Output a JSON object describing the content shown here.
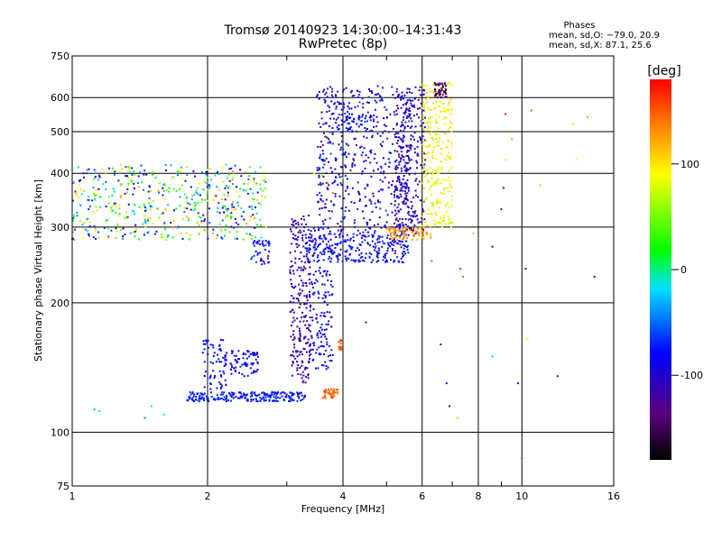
{
  "chart_data": {
    "type": "scatter",
    "title": "Tromsø 20140923 14:30:00–14:31:43",
    "subtitle": "RwPretec (8p)",
    "xlabel": "Frequency [MHz]",
    "ylabel": "Stationary phase Virtual Height [km]",
    "x_scale": "log",
    "y_scale": "log",
    "xlim": [
      1,
      16
    ],
    "ylim": [
      75,
      750
    ],
    "x_ticks": [
      1,
      2,
      4,
      6,
      8,
      10,
      16
    ],
    "x_minor_ticks": [
      3,
      5,
      7,
      9
    ],
    "y_ticks": [
      75,
      100,
      200,
      300,
      400,
      500,
      600,
      750
    ],
    "grid": true,
    "legend": {
      "title": "Phases",
      "lines": [
        "mean, sd,O: −79.0, 20.9",
        "mean, sd,X:  87.1, 25.6"
      ]
    },
    "colorbar": {
      "label": "[deg]",
      "range": [
        -180,
        180
      ],
      "ticks": [
        100,
        0,
        -100
      ]
    },
    "clusters": [
      {
        "name": "",
        "x": [
          1.0,
          2.7
        ],
        "y": [
          280,
          420
        ],
        "phase": [
          -120,
          130
        ],
        "n": 520
      },
      {
        "name": "",
        "x": [
          1.8,
          3.3
        ],
        "y": [
          118,
          124
        ],
        "phase": [
          -90,
          -60
        ],
        "n": 220
      },
      {
        "name": "",
        "x": [
          1.95,
          2.2
        ],
        "y": [
          125,
          165
        ],
        "phase": [
          -100,
          -70
        ],
        "n": 60
      },
      {
        "name": "",
        "x": [
          2.15,
          2.6
        ],
        "y": [
          135,
          155
        ],
        "phase": [
          -100,
          -70
        ],
        "n": 80
      },
      {
        "name": "",
        "x": [
          2.5,
          2.75
        ],
        "y": [
          245,
          280
        ],
        "phase": [
          -100,
          -60
        ],
        "n": 40
      },
      {
        "name": "",
        "x": [
          3.05,
          3.4
        ],
        "y": [
          130,
          320
        ],
        "phase": [
          -140,
          -90
        ],
        "n": 220
      },
      {
        "name": "",
        "x": [
          3.35,
          3.8
        ],
        "y": [
          140,
          300
        ],
        "phase": [
          -100,
          -70
        ],
        "n": 160
      },
      {
        "name": "",
        "x": [
          3.3,
          5.6
        ],
        "y": [
          248,
          290
        ],
        "phase": [
          -110,
          -60
        ],
        "n": 260
      },
      {
        "name": "",
        "x": [
          3.5,
          5.7
        ],
        "y": [
          285,
          640
        ],
        "phase": [
          -130,
          -60
        ],
        "n": 500
      },
      {
        "name": "",
        "x": [
          3.8,
          4.7
        ],
        "y": [
          500,
          590
        ],
        "phase": [
          -100,
          -60
        ],
        "n": 60
      },
      {
        "name": "",
        "x": [
          5.2,
          6.1
        ],
        "y": [
          290,
          640
        ],
        "phase": [
          -130,
          -80
        ],
        "n": 260
      },
      {
        "name": "",
        "x": [
          5.0,
          6.3
        ],
        "y": [
          280,
          300
        ],
        "phase": [
          110,
          150
        ],
        "n": 80
      },
      {
        "name": "",
        "x": [
          3.6,
          3.9
        ],
        "y": [
          120,
          126
        ],
        "phase": [
          130,
          160
        ],
        "n": 40
      },
      {
        "name": "",
        "x": [
          3.9,
          4.0
        ],
        "y": [
          155,
          165
        ],
        "phase": [
          140,
          160
        ],
        "n": 12
      },
      {
        "name": "",
        "x": [
          6.0,
          7.0
        ],
        "y": [
          300,
          650
        ],
        "phase": [
          70,
          110
        ],
        "n": 260
      },
      {
        "name": "",
        "x": [
          6.4,
          6.8
        ],
        "y": [
          600,
          650
        ],
        "phase": [
          -160,
          -120
        ],
        "n": 50
      }
    ],
    "scattered_points": [
      {
        "x": 1.15,
        "y": 112,
        "phase": -10
      },
      {
        "x": 1.12,
        "y": 113,
        "phase": -30
      },
      {
        "x": 1.5,
        "y": 115,
        "phase": -20
      },
      {
        "x": 1.45,
        "y": 108,
        "phase": -40
      },
      {
        "x": 1.6,
        "y": 110,
        "phase": -10
      },
      {
        "x": 3.6,
        "y": 395,
        "phase": 40
      },
      {
        "x": 3.7,
        "y": 380,
        "phase": 140
      },
      {
        "x": 3.55,
        "y": 410,
        "phase": -70
      },
      {
        "x": 3.45,
        "y": 400,
        "phase": 80
      },
      {
        "x": 3.8,
        "y": 360,
        "phase": 150
      },
      {
        "x": 4.0,
        "y": 390,
        "phase": 60
      },
      {
        "x": 4.1,
        "y": 280,
        "phase": -100
      },
      {
        "x": 4.5,
        "y": 180,
        "phase": -120
      },
      {
        "x": 4.6,
        "y": 450,
        "phase": -90
      },
      {
        "x": 6.3,
        "y": 250,
        "phase": 150
      },
      {
        "x": 6.6,
        "y": 160,
        "phase": -120
      },
      {
        "x": 6.8,
        "y": 130,
        "phase": -90
      },
      {
        "x": 6.9,
        "y": 115,
        "phase": -110
      },
      {
        "x": 7.2,
        "y": 108,
        "phase": 60
      },
      {
        "x": 7.3,
        "y": 240,
        "phase": 170
      },
      {
        "x": 7.4,
        "y": 230,
        "phase": 150
      },
      {
        "x": 7.8,
        "y": 290,
        "phase": 60
      },
      {
        "x": 8.6,
        "y": 150,
        "phase": -30
      },
      {
        "x": 8.6,
        "y": 270,
        "phase": -110
      },
      {
        "x": 9.0,
        "y": 330,
        "phase": -120
      },
      {
        "x": 9.1,
        "y": 370,
        "phase": -70
      },
      {
        "x": 9.2,
        "y": 430,
        "phase": 80
      },
      {
        "x": 9.2,
        "y": 550,
        "phase": 180
      },
      {
        "x": 9.5,
        "y": 480,
        "phase": 120
      },
      {
        "x": 9.8,
        "y": 130,
        "phase": -90
      },
      {
        "x": 10.0,
        "y": 87,
        "phase": 170
      },
      {
        "x": 10.2,
        "y": 240,
        "phase": -120
      },
      {
        "x": 10.3,
        "y": 165,
        "phase": 80
      },
      {
        "x": 10.5,
        "y": 560,
        "phase": 150
      },
      {
        "x": 11.0,
        "y": 375,
        "phase": 120
      },
      {
        "x": 12.0,
        "y": 135,
        "phase": -130
      },
      {
        "x": 13.0,
        "y": 520,
        "phase": 100
      },
      {
        "x": 13.2,
        "y": 430,
        "phase": 90
      },
      {
        "x": 14.0,
        "y": 540,
        "phase": 130
      },
      {
        "x": 14.5,
        "y": 230,
        "phase": -110
      }
    ]
  }
}
